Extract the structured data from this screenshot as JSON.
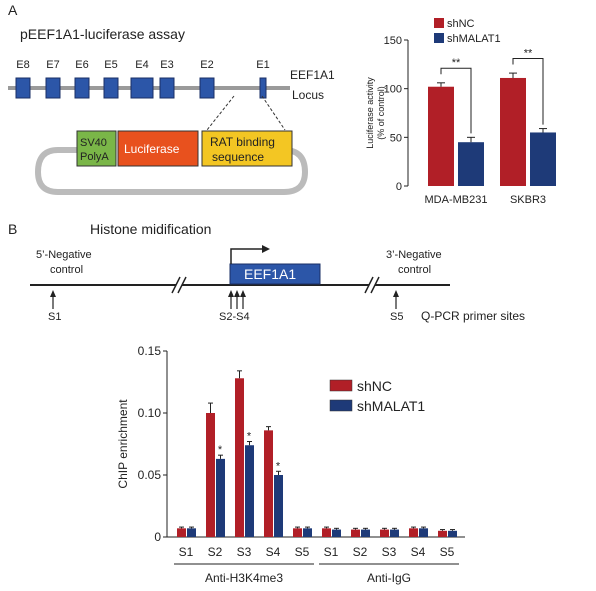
{
  "panel_a": {
    "letter": "A",
    "title": "pEEF1A1-luciferase assay",
    "exons": [
      "E8",
      "E7",
      "E6",
      "E5",
      "E4",
      "E3",
      "E2",
      "E1"
    ],
    "locus_label_line1": "EEF1A1",
    "locus_label_line2": "Locus",
    "construct": {
      "sv40_line1": "SV40",
      "sv40_line2": "PolyA",
      "luciferase": "Luciferase",
      "rat_line1": "RAT binding",
      "rat_line2": "sequence"
    },
    "colors": {
      "exon": "#2c56a8",
      "sv40": "#7ab648",
      "luciferase": "#e8511e",
      "rat": "#f3c623",
      "plasmid": "#bbbbbb"
    }
  },
  "panel_b": {
    "letter": "B",
    "title": "Histone midification",
    "gene_label": "EEF1A1",
    "neg5_line1": "5’-Negative",
    "neg5_line2": "control",
    "neg3_line1": "3’-Negative",
    "neg3_line2": "control",
    "site_s1": "S1",
    "site_s2s4": "S2-S4",
    "site_s5": "S5",
    "primer_note": "Q-PCR primer sites"
  },
  "chart_data": [
    {
      "type": "bar",
      "categories": [
        "MDA-MB231",
        "SKBR3"
      ],
      "series": [
        {
          "name": "shNC",
          "color": "#b11f27",
          "values": [
            102,
            111
          ],
          "errors": [
            4,
            5
          ]
        },
        {
          "name": "shMALAT1",
          "color": "#1e3a78",
          "values": [
            45,
            55
          ],
          "errors": [
            5,
            4
          ]
        }
      ],
      "ylabel": "Luciferase activity\n(% of control)",
      "ylim": [
        0,
        150
      ],
      "yticks": [
        0,
        50,
        100,
        150
      ],
      "significance": [
        "**",
        "**"
      ],
      "legend": "top"
    },
    {
      "type": "bar",
      "categories": [
        "S1",
        "S2",
        "S3",
        "S4",
        "S5",
        "S1",
        "S2",
        "S3",
        "S4",
        "S5"
      ],
      "groups": [
        {
          "label": "Anti-H3K4me3",
          "categories": [
            "S1",
            "S2",
            "S3",
            "S4",
            "S5"
          ]
        },
        {
          "label": "Anti-IgG",
          "categories": [
            "S1",
            "S2",
            "S3",
            "S4",
            "S5"
          ]
        }
      ],
      "series": [
        {
          "name": "shNC",
          "color": "#b11f27",
          "values": [
            0.007,
            0.1,
            0.128,
            0.086,
            0.007,
            0.007,
            0.006,
            0.006,
            0.007,
            0.005
          ],
          "errors": [
            0.001,
            0.008,
            0.006,
            0.003,
            0.001,
            0.001,
            0.001,
            0.001,
            0.001,
            0.001
          ]
        },
        {
          "name": "shMALAT1",
          "color": "#1e3a78",
          "values": [
            0.007,
            0.063,
            0.074,
            0.05,
            0.007,
            0.006,
            0.006,
            0.006,
            0.007,
            0.005
          ],
          "errors": [
            0.001,
            0.003,
            0.003,
            0.003,
            0.001,
            0.001,
            0.001,
            0.001,
            0.001,
            0.001
          ]
        }
      ],
      "significance": [
        "",
        "*",
        "*",
        "*",
        "",
        "",
        "",
        "",
        "",
        ""
      ],
      "ylabel": "ChIP enrichment",
      "ylim": [
        0,
        0.15
      ],
      "yticks": [
        0,
        0.05,
        0.1,
        0.15
      ],
      "ytick_labels": [
        "0",
        "0.05",
        "0.10",
        "0.15"
      ],
      "legend": "right"
    }
  ]
}
